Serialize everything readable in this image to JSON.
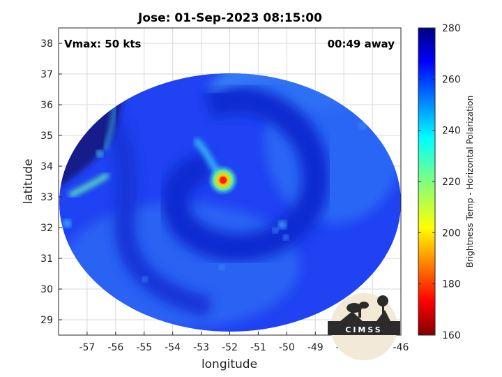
{
  "header": {
    "title": "Jose: 01-Sep-2023 08:15:00"
  },
  "annotations": {
    "vmax": "Vmax: 50 kts",
    "away": "00:49 away"
  },
  "logo": {
    "text": "CIMSS"
  },
  "chart_data": {
    "type": "heatmap",
    "title": "Jose: 01-Sep-2023 08:15:00",
    "xlabel": "longitude",
    "ylabel": "latitude",
    "xlim": [
      -58,
      -46
    ],
    "ylim": [
      28.5,
      38.5
    ],
    "x_ticks": [
      -57,
      -56,
      -55,
      -54,
      -53,
      -52,
      -51,
      -50,
      -49,
      -48,
      -47,
      -46
    ],
    "y_ticks": [
      29,
      30,
      31,
      32,
      33,
      34,
      35,
      36,
      37,
      38
    ],
    "grid": true,
    "colorbar": {
      "label": "Brightness Temp - Horizontal Polarization",
      "range": [
        160,
        280
      ],
      "ticks": [
        160,
        180,
        200,
        220,
        240,
        260,
        280
      ],
      "colormap": "jet"
    },
    "storm_center": {
      "lon": -52.1,
      "lat": 33.5,
      "min_tb": 175
    },
    "swath": {
      "center_lon": -52.2,
      "center_lat": 33.5,
      "shape": "circular"
    }
  },
  "colors": {
    "background_blue": "#1f3ff0",
    "cold_blue": "#0c1fb8",
    "warm_cyan": "#36b8f5",
    "core_red": "#e8231e",
    "land_dark": "#141f7a"
  }
}
